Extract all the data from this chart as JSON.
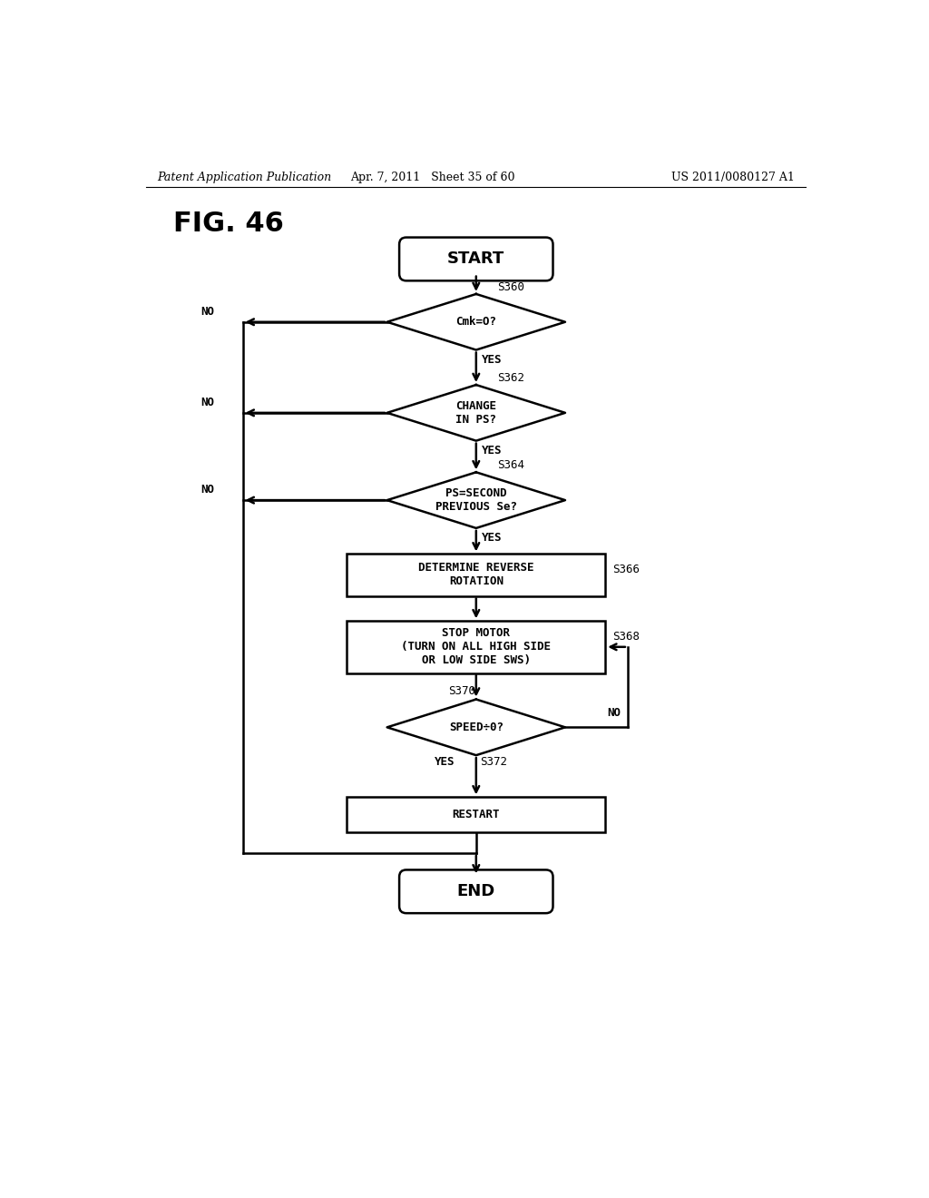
{
  "header_left": "Patent Application Publication",
  "header_mid": "Apr. 7, 2011   Sheet 35 of 60",
  "header_right": "US 2011/0080127 A1",
  "fig_label": "FIG. 46",
  "background_color": "#ffffff",
  "line_color": "#000000",
  "start_label": "START",
  "end_label": "END",
  "s360_label": "Cmk=O?",
  "s360_step": "S360",
  "s362_label": "CHANGE\nIN PS?",
  "s362_step": "S362",
  "s364_label": "PS=SECOND\nPREVIOUS Se?",
  "s364_step": "S364",
  "s366_label": "DETERMINE REVERSE\nROTATION",
  "s366_step": "S366",
  "s368_label": "STOP MOTOR\n(TURN ON ALL HIGH SIDE\nOR LOW SIDE SWS)",
  "s368_step": "S368",
  "s370_label": "SPEED÷0?",
  "s370_step": "S370",
  "s372_label": "RESTART",
  "s372_step": "S372",
  "yes_label": "YES",
  "no_label": "NO"
}
